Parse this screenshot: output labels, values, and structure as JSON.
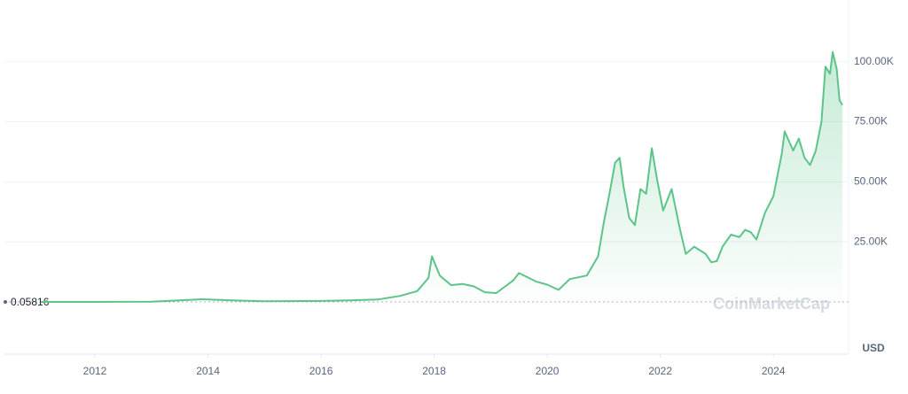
{
  "chart_data": {
    "type": "area",
    "unit_label": "USD",
    "watermark": "CoinMarketCap",
    "baseline": {
      "value": 0.05816
    },
    "color": "#5cc489",
    "grid": true,
    "xlim": [
      2010.4,
      2025.33
    ],
    "ylim": [
      -21750,
      124600
    ],
    "xticks": [
      2012,
      2014,
      2016,
      2018,
      2020,
      2022,
      2024
    ],
    "yticks": [
      {
        "value": 25000,
        "label": "25.00K"
      },
      {
        "value": 50000,
        "label": "50.00K"
      },
      {
        "value": 75000,
        "label": "75.00K"
      },
      {
        "value": 100000,
        "label": "100.00K"
      }
    ],
    "x": [
      2011.05,
      2012,
      2013,
      2013.9,
      2014.5,
      2015,
      2016,
      2016.5,
      2017,
      2017.4,
      2017.7,
      2017.9,
      2017.96,
      2018.1,
      2018.3,
      2018.5,
      2018.7,
      2018.9,
      2019.1,
      2019.4,
      2019.5,
      2019.8,
      2020.0,
      2020.2,
      2020.4,
      2020.7,
      2020.9,
      2021.0,
      2021.1,
      2021.2,
      2021.28,
      2021.35,
      2021.45,
      2021.55,
      2021.65,
      2021.75,
      2021.85,
      2021.95,
      2022.05,
      2022.2,
      2022.35,
      2022.45,
      2022.6,
      2022.8,
      2022.9,
      2023.0,
      2023.1,
      2023.25,
      2023.4,
      2023.5,
      2023.6,
      2023.7,
      2023.85,
      2024.0,
      2024.15,
      2024.2,
      2024.35,
      2024.45,
      2024.55,
      2024.65,
      2024.75,
      2024.85,
      2024.92,
      2025.0,
      2025.05,
      2025.12,
      2025.17,
      2025.22
    ],
    "values": [
      15,
      5,
      100,
      1100,
      600,
      300,
      400,
      650,
      1000,
      2500,
      4500,
      10000,
      19000,
      11000,
      7000,
      7500,
      6500,
      4000,
      3700,
      9000,
      12000,
      8500,
      7200,
      5000,
      9500,
      11000,
      19000,
      33000,
      45000,
      58000,
      60000,
      48000,
      35000,
      32000,
      47000,
      45000,
      64000,
      50000,
      38000,
      47000,
      30000,
      20000,
      23000,
      20000,
      16500,
      17000,
      23000,
      28000,
      27000,
      30000,
      29000,
      26000,
      37000,
      44000,
      62000,
      71000,
      63000,
      68000,
      60000,
      57000,
      63000,
      75000,
      98000,
      95000,
      104000,
      97000,
      84000,
      82000
    ]
  }
}
